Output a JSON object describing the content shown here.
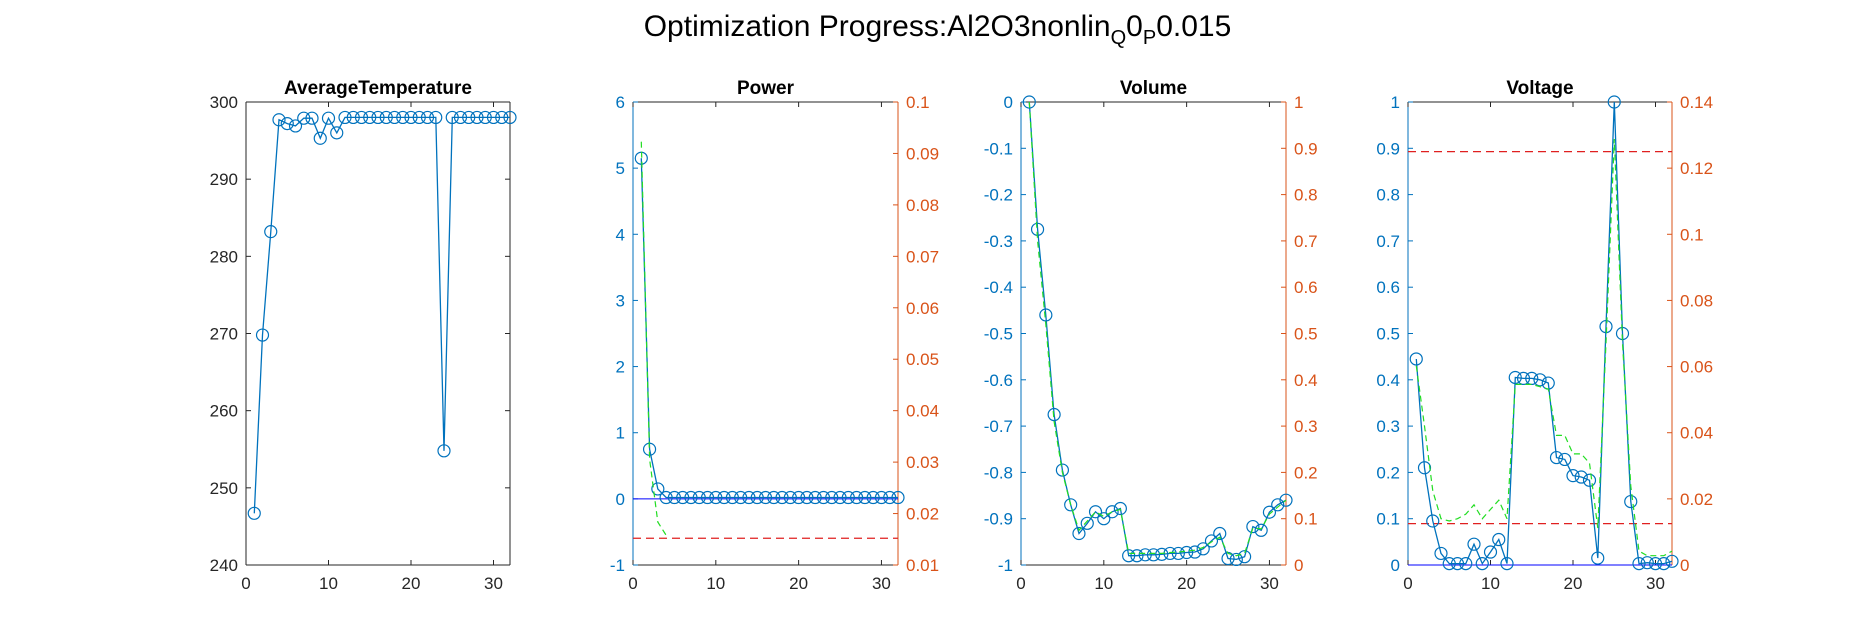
{
  "figure": {
    "title_main": "Optimization Progress:Al2O3nonlin",
    "title_sub1": "Q",
    "title_mid": "0",
    "title_sub2": "P",
    "title_end": "0.015"
  },
  "colors": {
    "blue": "#0072BD",
    "orange": "#D95319",
    "green": "#22DD22",
    "red": "#E02020",
    "baseline": "#0000FF"
  },
  "chart_data": [
    {
      "type": "line",
      "title": "AverageTemperature",
      "xlim": [
        0,
        32
      ],
      "xticks": [
        0,
        10,
        20,
        30
      ],
      "left_axis": {
        "ylim": [
          240,
          300
        ],
        "ticks": [
          240,
          250,
          260,
          270,
          280,
          290,
          300
        ],
        "labels": [
          "240",
          "250",
          "260",
          "270",
          "280",
          "290",
          "300"
        ],
        "colored": false
      },
      "series": [
        {
          "style": "blue-marker",
          "x": [
            1,
            2,
            3,
            4,
            5,
            6,
            7,
            8,
            9,
            10,
            11,
            12,
            13,
            14,
            15,
            16,
            17,
            18,
            19,
            20,
            21,
            22,
            23,
            24,
            25,
            26,
            27,
            28,
            29,
            30,
            31,
            32
          ],
          "y": [
            246.7,
            269.8,
            283.2,
            297.7,
            297.2,
            296.9,
            297.9,
            297.9,
            295.3,
            297.9,
            296.0,
            298.0,
            298.0,
            298.0,
            298.0,
            298.0,
            298.0,
            298.0,
            298.0,
            298.0,
            298.0,
            298.0,
            298.0,
            254.8,
            298.0,
            298.0,
            298.0,
            298.0,
            298.0,
            298.0,
            298.0,
            298.0
          ]
        }
      ]
    },
    {
      "type": "line",
      "title": "Power",
      "xlim": [
        0,
        32
      ],
      "xticks": [
        0,
        10,
        20,
        30
      ],
      "left_axis": {
        "ylim": [
          -1,
          6
        ],
        "ticks": [
          -1,
          0,
          1,
          2,
          3,
          4,
          5,
          6
        ],
        "labels": [
          "-1",
          "0",
          "1",
          "2",
          "3",
          "4",
          "5",
          "6"
        ],
        "colored": true
      },
      "right_axis": {
        "ylim": [
          0.01,
          0.1
        ],
        "ticks": [
          0.01,
          0.02,
          0.03,
          0.04,
          0.05,
          0.06,
          0.07,
          0.08,
          0.09,
          0.1
        ],
        "labels": [
          "0.01",
          "0.02",
          "0.03",
          "0.04",
          "0.05",
          "0.06",
          "0.07",
          "0.08",
          "0.09",
          "0.1"
        ]
      },
      "hlines": [
        {
          "axis": "left",
          "y": 0,
          "style": "baseline"
        },
        {
          "axis": "right",
          "y": 0.0152,
          "style": "red-dash"
        }
      ],
      "series": [
        {
          "style": "blue-marker",
          "axis": "left",
          "x": [
            1,
            2,
            3,
            4,
            5,
            6,
            7,
            8,
            9,
            10,
            11,
            12,
            13,
            14,
            15,
            16,
            17,
            18,
            19,
            20,
            21,
            22,
            23,
            24,
            25,
            26,
            27,
            28,
            29,
            30,
            31,
            32
          ],
          "y": [
            5.15,
            0.75,
            0.15,
            0.02,
            0.02,
            0.02,
            0.02,
            0.02,
            0.02,
            0.02,
            0.02,
            0.02,
            0.02,
            0.02,
            0.02,
            0.02,
            0.02,
            0.02,
            0.02,
            0.02,
            0.02,
            0.02,
            0.02,
            0.02,
            0.02,
            0.02,
            0.02,
            0.02,
            0.02,
            0.02,
            0.02,
            0.02
          ]
        },
        {
          "style": "green-dash",
          "axis": "left",
          "x": [
            1,
            2,
            3,
            4
          ],
          "y": [
            5.4,
            0.6,
            -0.35,
            -0.55
          ]
        }
      ]
    },
    {
      "type": "line",
      "title": "Volume",
      "xlim": [
        0,
        32
      ],
      "xticks": [
        0,
        10,
        20,
        30
      ],
      "left_axis": {
        "ylim": [
          -1,
          0
        ],
        "ticks": [
          -1,
          -0.9,
          -0.8,
          -0.7,
          -0.6,
          -0.5,
          -0.4,
          -0.3,
          -0.2,
          -0.1,
          0
        ],
        "labels": [
          "-1",
          "-0.9",
          "-0.8",
          "-0.7",
          "-0.6",
          "-0.5",
          "-0.4",
          "-0.3",
          "-0.2",
          "-0.1",
          "0"
        ],
        "colored": true
      },
      "right_axis": {
        "ylim": [
          0,
          1
        ],
        "ticks": [
          0,
          0.1,
          0.2,
          0.3,
          0.4,
          0.5,
          0.6,
          0.7,
          0.8,
          0.9,
          1
        ],
        "labels": [
          "0",
          "0.1",
          "0.2",
          "0.3",
          "0.4",
          "0.5",
          "0.6",
          "0.7",
          "0.8",
          "0.9",
          "1"
        ]
      },
      "series": [
        {
          "style": "blue-marker",
          "axis": "left",
          "x": [
            1,
            2,
            3,
            4,
            5,
            6,
            7,
            8,
            9,
            10,
            11,
            12,
            13,
            14,
            15,
            16,
            17,
            18,
            19,
            20,
            21,
            22,
            23,
            24,
            25,
            26,
            27,
            28,
            29,
            30,
            31,
            32
          ],
          "y": [
            0,
            -0.275,
            -0.46,
            -0.675,
            -0.795,
            -0.87,
            -0.932,
            -0.91,
            -0.885,
            -0.9,
            -0.885,
            -0.878,
            -0.98,
            -0.98,
            -0.978,
            -0.978,
            -0.977,
            -0.975,
            -0.975,
            -0.973,
            -0.972,
            -0.965,
            -0.948,
            -0.932,
            -0.986,
            -0.988,
            -0.982,
            -0.917,
            -0.925,
            -0.886,
            -0.87,
            -0.86
          ]
        },
        {
          "style": "green-dash",
          "axis": "left",
          "x": [
            1,
            2,
            3,
            4,
            5,
            6,
            7,
            8,
            9,
            10,
            11,
            12,
            13,
            14,
            15,
            16,
            17,
            18,
            19,
            20,
            21,
            22,
            23,
            24,
            25,
            26,
            27,
            28,
            29,
            30,
            31,
            32
          ],
          "y": [
            0,
            -0.3,
            -0.48,
            -0.69,
            -0.8,
            -0.87,
            -0.925,
            -0.905,
            -0.885,
            -0.895,
            -0.885,
            -0.88,
            -0.975,
            -0.975,
            -0.975,
            -0.975,
            -0.975,
            -0.973,
            -0.972,
            -0.97,
            -0.968,
            -0.962,
            -0.95,
            -0.94,
            -0.975,
            -0.98,
            -0.975,
            -0.92,
            -0.922,
            -0.89,
            -0.875,
            -0.86
          ]
        }
      ]
    },
    {
      "type": "line",
      "title": "Voltage",
      "xlim": [
        0,
        32
      ],
      "xticks": [
        0,
        10,
        20,
        30
      ],
      "left_axis": {
        "ylim": [
          0,
          1
        ],
        "ticks": [
          0,
          0.1,
          0.2,
          0.3,
          0.4,
          0.5,
          0.6,
          0.7,
          0.8,
          0.9,
          1
        ],
        "labels": [
          "0",
          "0.1",
          "0.2",
          "0.3",
          "0.4",
          "0.5",
          "0.6",
          "0.7",
          "0.8",
          "0.9",
          "1"
        ],
        "colored": true
      },
      "right_axis": {
        "ylim": [
          0,
          0.14
        ],
        "ticks": [
          0,
          0.02,
          0.04,
          0.06,
          0.08,
          0.1,
          0.12,
          0.14
        ],
        "labels": [
          "0",
          "0.02",
          "0.04",
          "0.06",
          "0.08",
          "0.1",
          "0.12",
          "0.14"
        ]
      },
      "hlines": [
        {
          "axis": "left",
          "y": 0,
          "style": "baseline"
        },
        {
          "axis": "right",
          "y": 0.125,
          "style": "red-dash"
        },
        {
          "axis": "right",
          "y": 0.0125,
          "style": "red-dash"
        }
      ],
      "series": [
        {
          "style": "blue-marker",
          "axis": "left",
          "x": [
            1,
            2,
            3,
            4,
            5,
            6,
            7,
            8,
            9,
            10,
            11,
            12,
            13,
            14,
            15,
            16,
            17,
            18,
            19,
            20,
            21,
            22,
            23,
            24,
            25,
            26,
            27,
            28,
            29,
            30,
            31,
            32
          ],
          "y": [
            0.445,
            0.21,
            0.095,
            0.025,
            0.003,
            0.003,
            0.003,
            0.045,
            0.003,
            0.028,
            0.055,
            0.003,
            0.405,
            0.403,
            0.403,
            0.4,
            0.393,
            0.232,
            0.228,
            0.193,
            0.19,
            0.183,
            0.015,
            0.515,
            1.0,
            0.5,
            0.137,
            0.003,
            0.005,
            0.003,
            0.003,
            0.008
          ]
        },
        {
          "style": "green-dash",
          "axis": "left",
          "x": [
            1,
            2,
            3,
            4,
            5,
            6,
            7,
            8,
            9,
            10,
            11,
            12,
            13,
            14,
            15,
            16,
            17,
            18,
            19,
            20,
            21,
            22,
            23,
            24,
            25,
            26,
            27,
            28,
            29,
            30,
            31,
            32
          ],
          "y": [
            0.43,
            0.3,
            0.16,
            0.1,
            0.095,
            0.1,
            0.11,
            0.13,
            0.1,
            0.12,
            0.14,
            0.1,
            0.39,
            0.39,
            0.39,
            0.385,
            0.38,
            0.28,
            0.28,
            0.24,
            0.24,
            0.22,
            0.08,
            0.48,
            0.92,
            0.48,
            0.17,
            0.03,
            0.02,
            0.02,
            0.02,
            0.03
          ]
        }
      ]
    }
  ]
}
